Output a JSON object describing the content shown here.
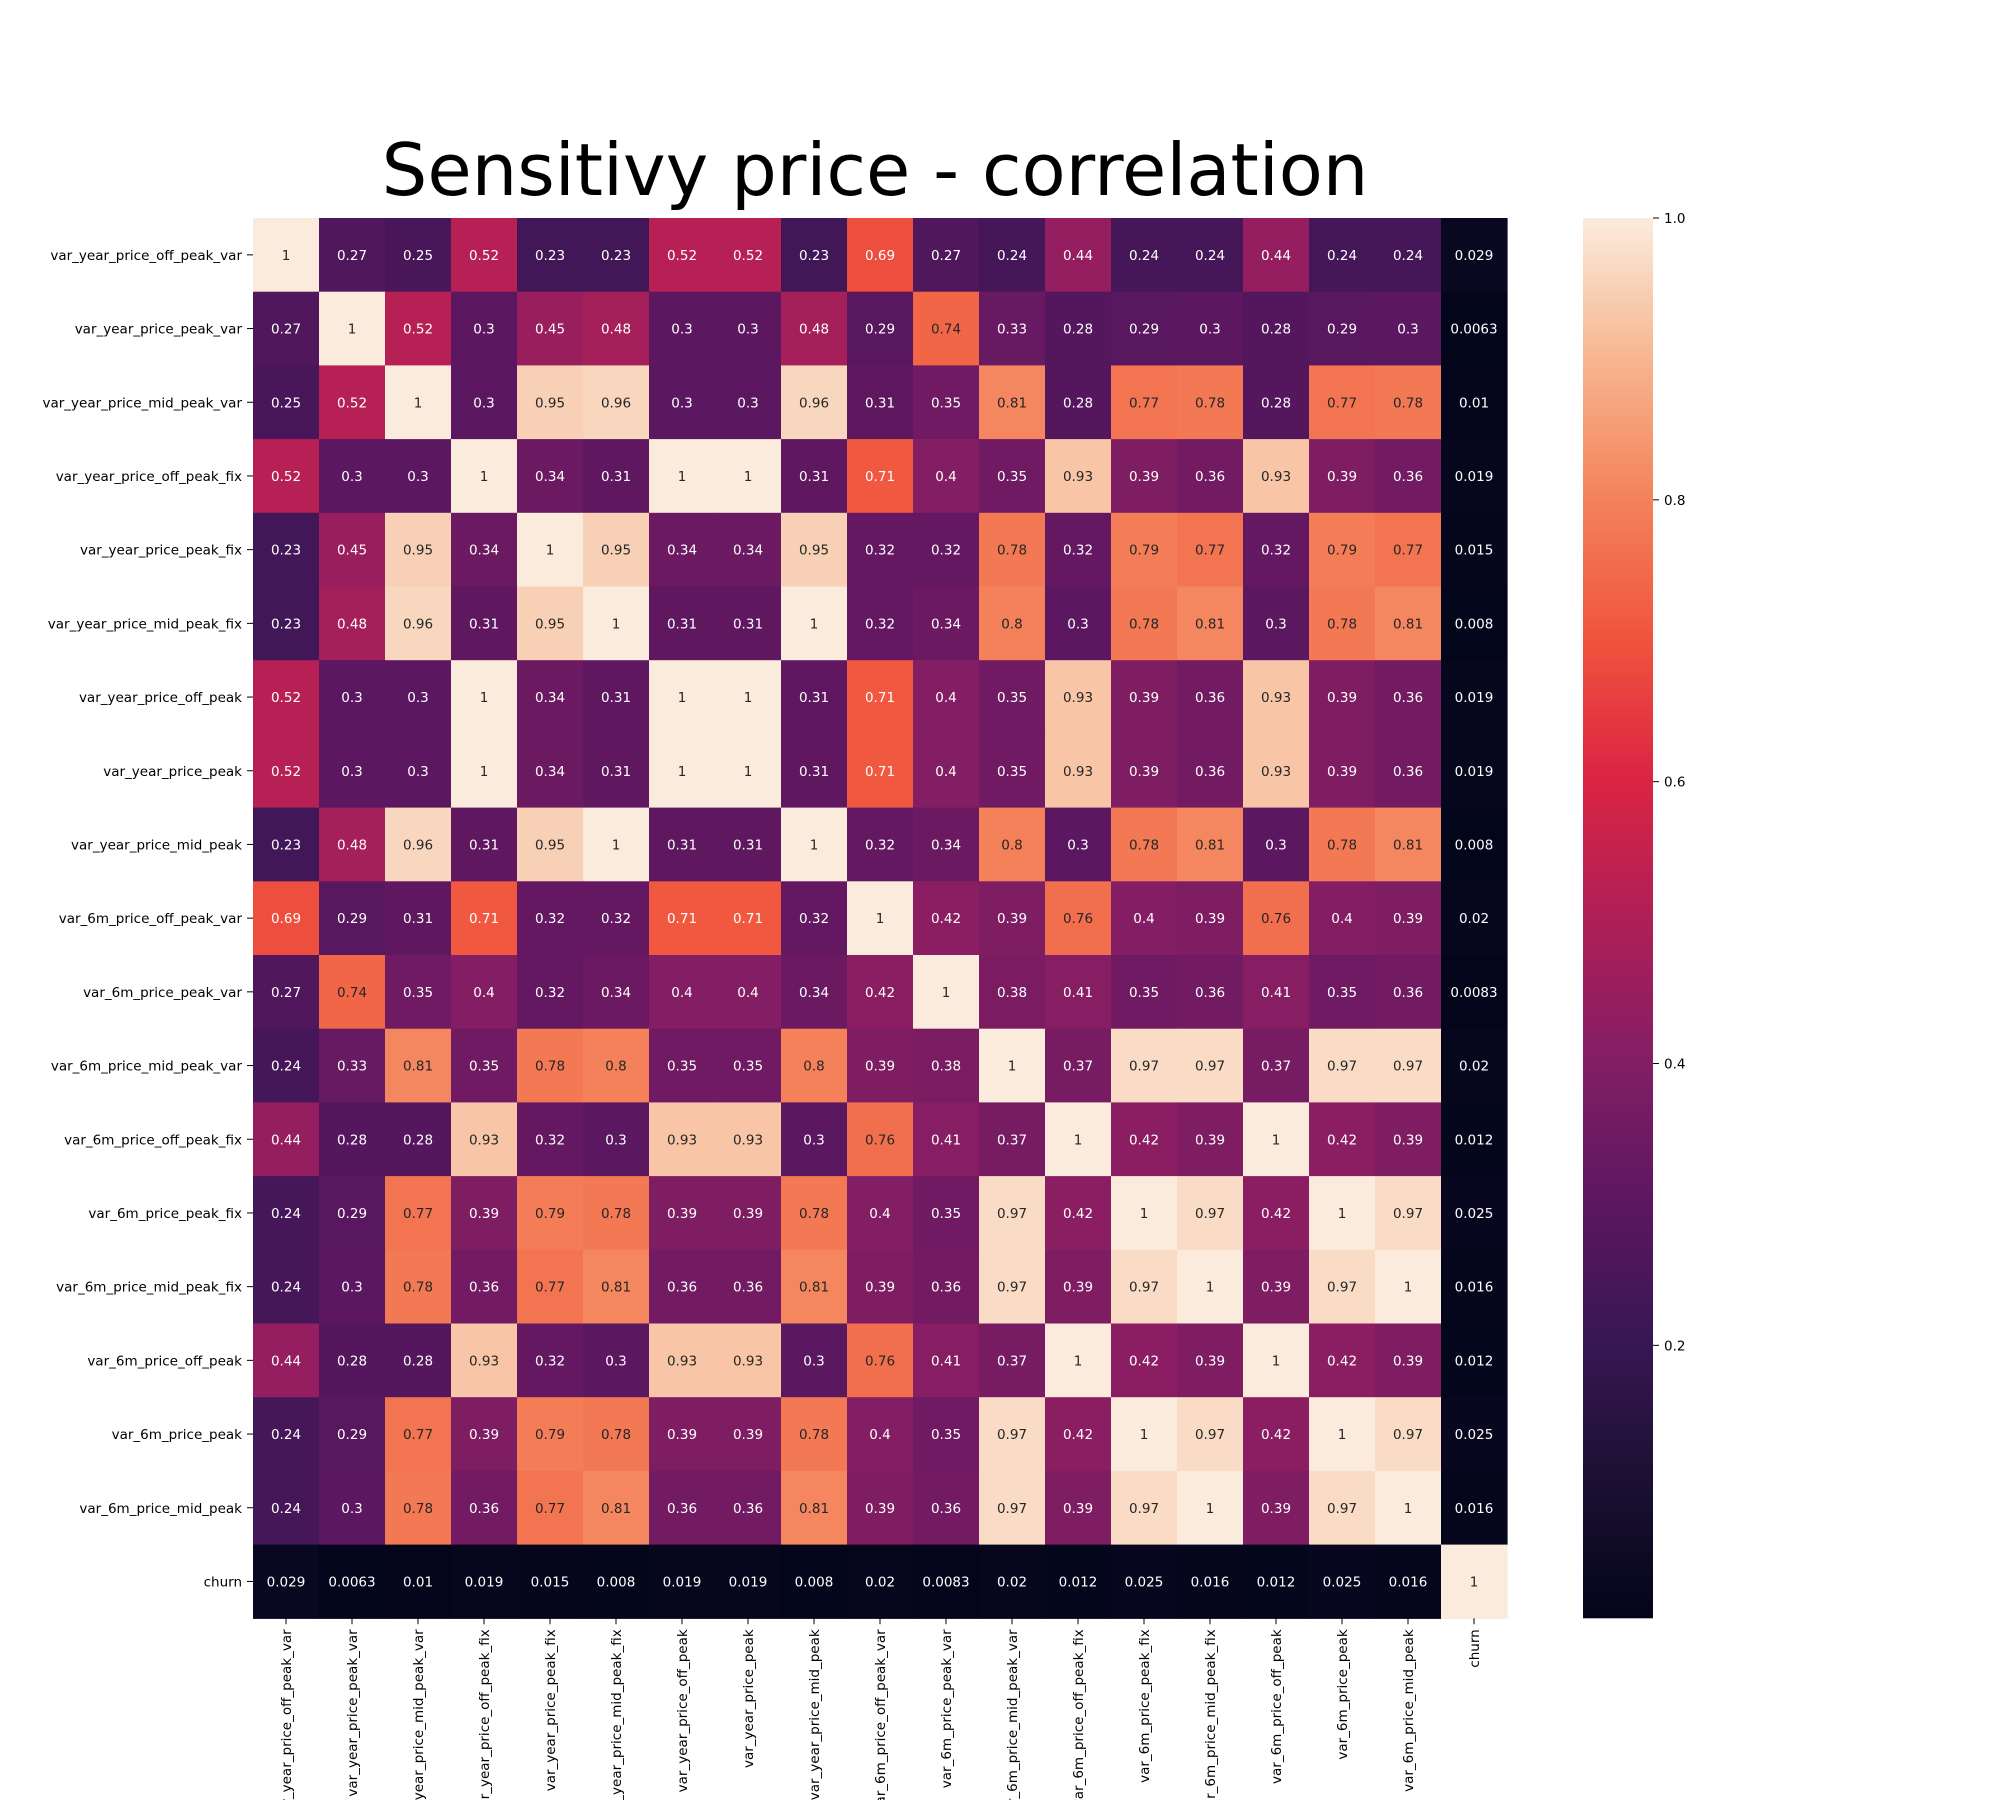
{
  "chart_data": {
    "type": "heatmap",
    "title": "Sensitivy price - correlation",
    "xlabel": "",
    "ylabel": "",
    "labels": [
      "var_year_price_off_peak_var",
      "var_year_price_peak_var",
      "var_year_price_mid_peak_var",
      "var_year_price_off_peak_fix",
      "var_year_price_peak_fix",
      "var_year_price_mid_peak_fix",
      "var_year_price_off_peak",
      "var_year_price_peak",
      "var_year_price_mid_peak",
      "var_6m_price_off_peak_var",
      "var_6m_price_peak_var",
      "var_6m_price_mid_peak_var",
      "var_6m_price_off_peak_fix",
      "var_6m_price_peak_fix",
      "var_6m_price_mid_peak_fix",
      "var_6m_price_off_peak",
      "var_6m_price_peak",
      "var_6m_price_mid_peak",
      "churn"
    ],
    "values": [
      [
        1,
        0.27,
        0.25,
        0.52,
        0.23,
        0.23,
        0.52,
        0.52,
        0.23,
        0.69,
        0.27,
        0.24,
        0.44,
        0.24,
        0.24,
        0.44,
        0.24,
        0.24,
        0.029
      ],
      [
        0.27,
        1,
        0.52,
        0.3,
        0.45,
        0.48,
        0.3,
        0.3,
        0.48,
        0.29,
        0.74,
        0.33,
        0.28,
        0.29,
        0.3,
        0.28,
        0.29,
        0.3,
        0.0063
      ],
      [
        0.25,
        0.52,
        1,
        0.3,
        0.95,
        0.96,
        0.3,
        0.3,
        0.96,
        0.31,
        0.35,
        0.81,
        0.28,
        0.77,
        0.78,
        0.28,
        0.77,
        0.78,
        0.01
      ],
      [
        0.52,
        0.3,
        0.3,
        1,
        0.34,
        0.31,
        1,
        1,
        0.31,
        0.71,
        0.4,
        0.35,
        0.93,
        0.39,
        0.36,
        0.93,
        0.39,
        0.36,
        0.019
      ],
      [
        0.23,
        0.45,
        0.95,
        0.34,
        1,
        0.95,
        0.34,
        0.34,
        0.95,
        0.32,
        0.32,
        0.78,
        0.32,
        0.79,
        0.77,
        0.32,
        0.79,
        0.77,
        0.015
      ],
      [
        0.23,
        0.48,
        0.96,
        0.31,
        0.95,
        1,
        0.31,
        0.31,
        1,
        0.32,
        0.34,
        0.8,
        0.3,
        0.78,
        0.81,
        0.3,
        0.78,
        0.81,
        0.008
      ],
      [
        0.52,
        0.3,
        0.3,
        1,
        0.34,
        0.31,
        1,
        1,
        0.31,
        0.71,
        0.4,
        0.35,
        0.93,
        0.39,
        0.36,
        0.93,
        0.39,
        0.36,
        0.019
      ],
      [
        0.52,
        0.3,
        0.3,
        1,
        0.34,
        0.31,
        1,
        1,
        0.31,
        0.71,
        0.4,
        0.35,
        0.93,
        0.39,
        0.36,
        0.93,
        0.39,
        0.36,
        0.019
      ],
      [
        0.23,
        0.48,
        0.96,
        0.31,
        0.95,
        1,
        0.31,
        0.31,
        1,
        0.32,
        0.34,
        0.8,
        0.3,
        0.78,
        0.81,
        0.3,
        0.78,
        0.81,
        0.008
      ],
      [
        0.69,
        0.29,
        0.31,
        0.71,
        0.32,
        0.32,
        0.71,
        0.71,
        0.32,
        1,
        0.42,
        0.39,
        0.76,
        0.4,
        0.39,
        0.76,
        0.4,
        0.39,
        0.02
      ],
      [
        0.27,
        0.74,
        0.35,
        0.4,
        0.32,
        0.34,
        0.4,
        0.4,
        0.34,
        0.42,
        1,
        0.38,
        0.41,
        0.35,
        0.36,
        0.41,
        0.35,
        0.36,
        0.0083
      ],
      [
        0.24,
        0.33,
        0.81,
        0.35,
        0.78,
        0.8,
        0.35,
        0.35,
        0.8,
        0.39,
        0.38,
        1,
        0.37,
        0.97,
        0.97,
        0.37,
        0.97,
        0.97,
        0.02
      ],
      [
        0.44,
        0.28,
        0.28,
        0.93,
        0.32,
        0.3,
        0.93,
        0.93,
        0.3,
        0.76,
        0.41,
        0.37,
        1,
        0.42,
        0.39,
        1,
        0.42,
        0.39,
        0.012
      ],
      [
        0.24,
        0.29,
        0.77,
        0.39,
        0.79,
        0.78,
        0.39,
        0.39,
        0.78,
        0.4,
        0.35,
        0.97,
        0.42,
        1,
        0.97,
        0.42,
        1,
        0.97,
        0.025
      ],
      [
        0.24,
        0.3,
        0.78,
        0.36,
        0.77,
        0.81,
        0.36,
        0.36,
        0.81,
        0.39,
        0.36,
        0.97,
        0.39,
        0.97,
        1,
        0.39,
        0.97,
        1,
        0.016
      ],
      [
        0.44,
        0.28,
        0.28,
        0.93,
        0.32,
        0.3,
        0.93,
        0.93,
        0.3,
        0.76,
        0.41,
        0.37,
        1,
        0.42,
        0.39,
        1,
        0.42,
        0.39,
        0.012
      ],
      [
        0.24,
        0.29,
        0.77,
        0.39,
        0.79,
        0.78,
        0.39,
        0.39,
        0.78,
        0.4,
        0.35,
        0.97,
        0.42,
        1,
        0.97,
        0.42,
        1,
        0.97,
        0.025
      ],
      [
        0.24,
        0.3,
        0.78,
        0.36,
        0.77,
        0.81,
        0.36,
        0.36,
        0.81,
        0.39,
        0.36,
        0.97,
        0.39,
        0.97,
        1,
        0.39,
        0.97,
        1,
        0.016
      ],
      [
        0.029,
        0.0063,
        0.01,
        0.019,
        0.015,
        0.008,
        0.019,
        0.019,
        0.008,
        0.02,
        0.0083,
        0.02,
        0.012,
        0.025,
        0.016,
        0.012,
        0.025,
        0.016,
        1
      ]
    ],
    "colormap": "rocket",
    "vmin": 0.0063,
    "vmax": 1,
    "colorbar_ticks": [
      "0.2",
      "0.4",
      "0.6",
      "0.8",
      "1.0"
    ],
    "colorbar_tick_values": [
      0.2,
      0.4,
      0.6,
      0.8,
      1.0
    ],
    "annotations": true
  }
}
